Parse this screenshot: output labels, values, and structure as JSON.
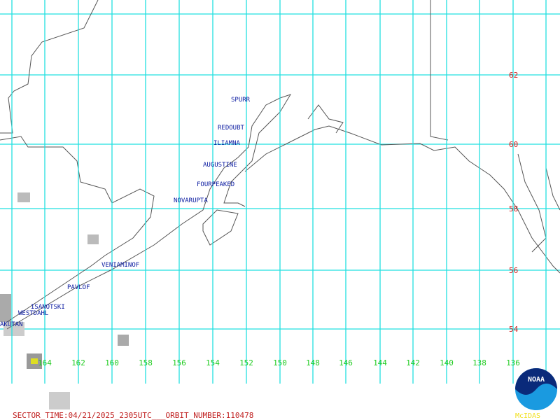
{
  "volcanoes": [
    {
      "label": "SPURR"
    },
    {
      "label": "REDOUBT"
    },
    {
      "label": "ILIAMNA"
    },
    {
      "label": "AUGUSTINE"
    },
    {
      "label": "FOURPEAKED"
    },
    {
      "label": "NOVARUPTA"
    },
    {
      "label": "VENIAMINOF"
    },
    {
      "label": "PAVLOF"
    },
    {
      "label": "ISANOTSKI"
    },
    {
      "label": "WESTDAHL"
    },
    {
      "label": "AKUTAN"
    }
  ],
  "latitude_labels": [
    "62",
    "60",
    "58",
    "56",
    "54"
  ],
  "longitude_labels": [
    "164",
    "162",
    "160",
    "158",
    "156",
    "154",
    "152",
    "150",
    "148",
    "146",
    "144",
    "142",
    "140",
    "138",
    "136"
  ],
  "footer": {
    "sector_time": "SECTOR_TIME:04/21/2025_2305UTC___ORBIT_NUMBER:110478"
  },
  "logo": {
    "agency": "NOAA",
    "software": "McIDAS"
  }
}
